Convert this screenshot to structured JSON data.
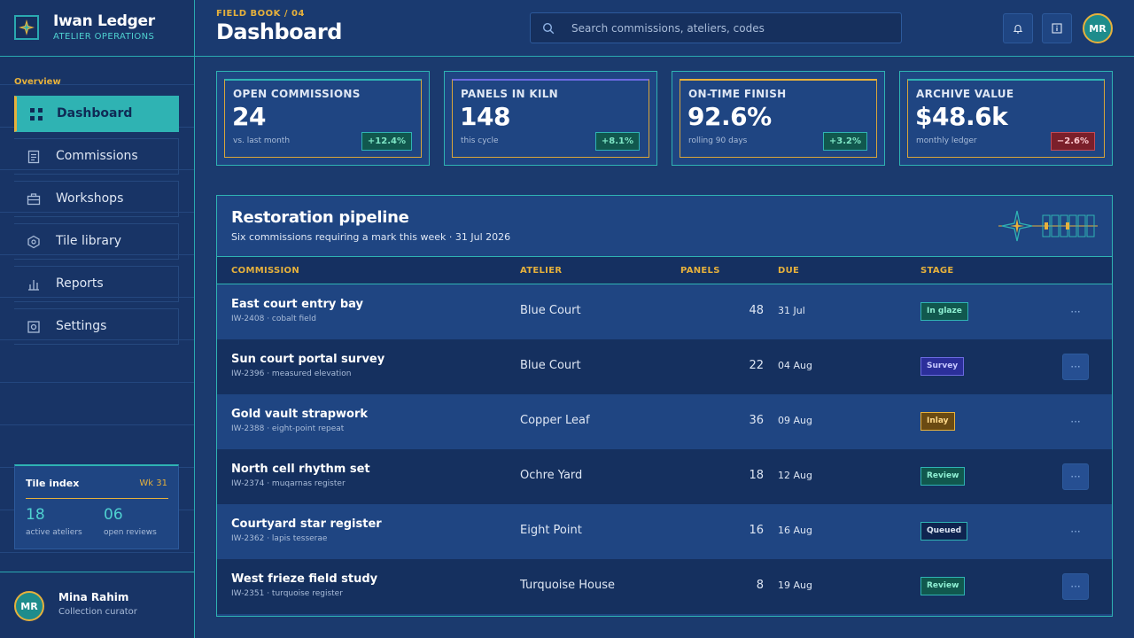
{
  "brand": {
    "name": "Iwan Ledger",
    "subtitle": "ATELIER OPERATIONS"
  },
  "sidebar": {
    "section": "Overview",
    "items": [
      {
        "label": "Dashboard",
        "icon": "grid-icon",
        "active": true
      },
      {
        "label": "Commissions",
        "icon": "document-icon",
        "active": false
      },
      {
        "label": "Workshops",
        "icon": "briefcase-icon",
        "active": false
      },
      {
        "label": "Tile library",
        "icon": "hexagon-icon",
        "active": false
      },
      {
        "label": "Reports",
        "icon": "bar-chart-icon",
        "active": false
      },
      {
        "label": "Settings",
        "icon": "gear-icon",
        "active": false
      }
    ],
    "tile_index": {
      "title": "Tile index",
      "week": "Wk 31",
      "stats": [
        {
          "value": "18",
          "caption": "active ateliers"
        },
        {
          "value": "06",
          "caption": "open reviews"
        }
      ]
    },
    "user": {
      "initials": "MR",
      "name": "Mina Rahim",
      "role": "Collection curator"
    }
  },
  "header": {
    "breadcrumb": "FIELD BOOK / 04",
    "title": "Dashboard",
    "search_placeholder": "Search commissions, ateliers, codes",
    "avatar_initials": "MR"
  },
  "stats": [
    {
      "label": "OPEN COMMISSIONS",
      "value": "24",
      "note": "vs. last month",
      "delta": "+12.4%",
      "trend": "pos",
      "accent": "#2fb3b3"
    },
    {
      "label": "PANELS IN KILN",
      "value": "148",
      "note": "this cycle",
      "delta": "+8.1%",
      "trend": "pos",
      "accent": "#6b6ae0"
    },
    {
      "label": "ON-TIME FINISH",
      "value": "92.6%",
      "note": "rolling 90 days",
      "delta": "+3.2%",
      "trend": "pos",
      "accent": "#e6b13c"
    },
    {
      "label": "ARCHIVE VALUE",
      "value": "$48.6k",
      "note": "monthly ledger",
      "delta": "−2.6%",
      "trend": "neg",
      "accent": "#2fb3b3"
    }
  ],
  "pipeline": {
    "title": "Restoration pipeline",
    "subtitle": "Six commissions requiring a mark this week · 31 Jul 2026",
    "columns": [
      "COMMISSION",
      "ATELIER",
      "PANELS",
      "DUE",
      "STAGE"
    ],
    "rows": [
      {
        "name": "East court entry bay",
        "code": "IW-2408 · cobalt field",
        "atelier": "Blue Court",
        "panels": "48",
        "due": "31 Jul",
        "stage": "In glaze",
        "stage_style": "teal",
        "action": "···"
      },
      {
        "name": "Sun court portal survey",
        "code": "IW-2396 · measured elevation",
        "atelier": "Blue Court",
        "panels": "22",
        "due": "04 Aug",
        "stage": "Survey",
        "stage_style": "violet",
        "action": "···"
      },
      {
        "name": "Gold vault strapwork",
        "code": "IW-2388 · eight-point repeat",
        "atelier": "Copper Leaf",
        "panels": "36",
        "due": "09 Aug",
        "stage": "Inlay",
        "stage_style": "amber",
        "action": "···"
      },
      {
        "name": "North cell rhythm set",
        "code": "IW-2374 · muqarnas register",
        "atelier": "Ochre Yard",
        "panels": "18",
        "due": "12 Aug",
        "stage": "Review",
        "stage_style": "teal",
        "action": "···"
      },
      {
        "name": "Courtyard star register",
        "code": "IW-2362 · lapis tesserae",
        "atelier": "Eight Point",
        "panels": "16",
        "due": "16 Aug",
        "stage": "Queued",
        "stage_style": "navy",
        "action": "···"
      },
      {
        "name": "West frieze field study",
        "code": "IW-2351 · turquoise register",
        "atelier": "Turquoise House",
        "panels": "8",
        "due": "19 Aug",
        "stage": "Review",
        "stage_style": "teal",
        "action": "···"
      }
    ]
  }
}
